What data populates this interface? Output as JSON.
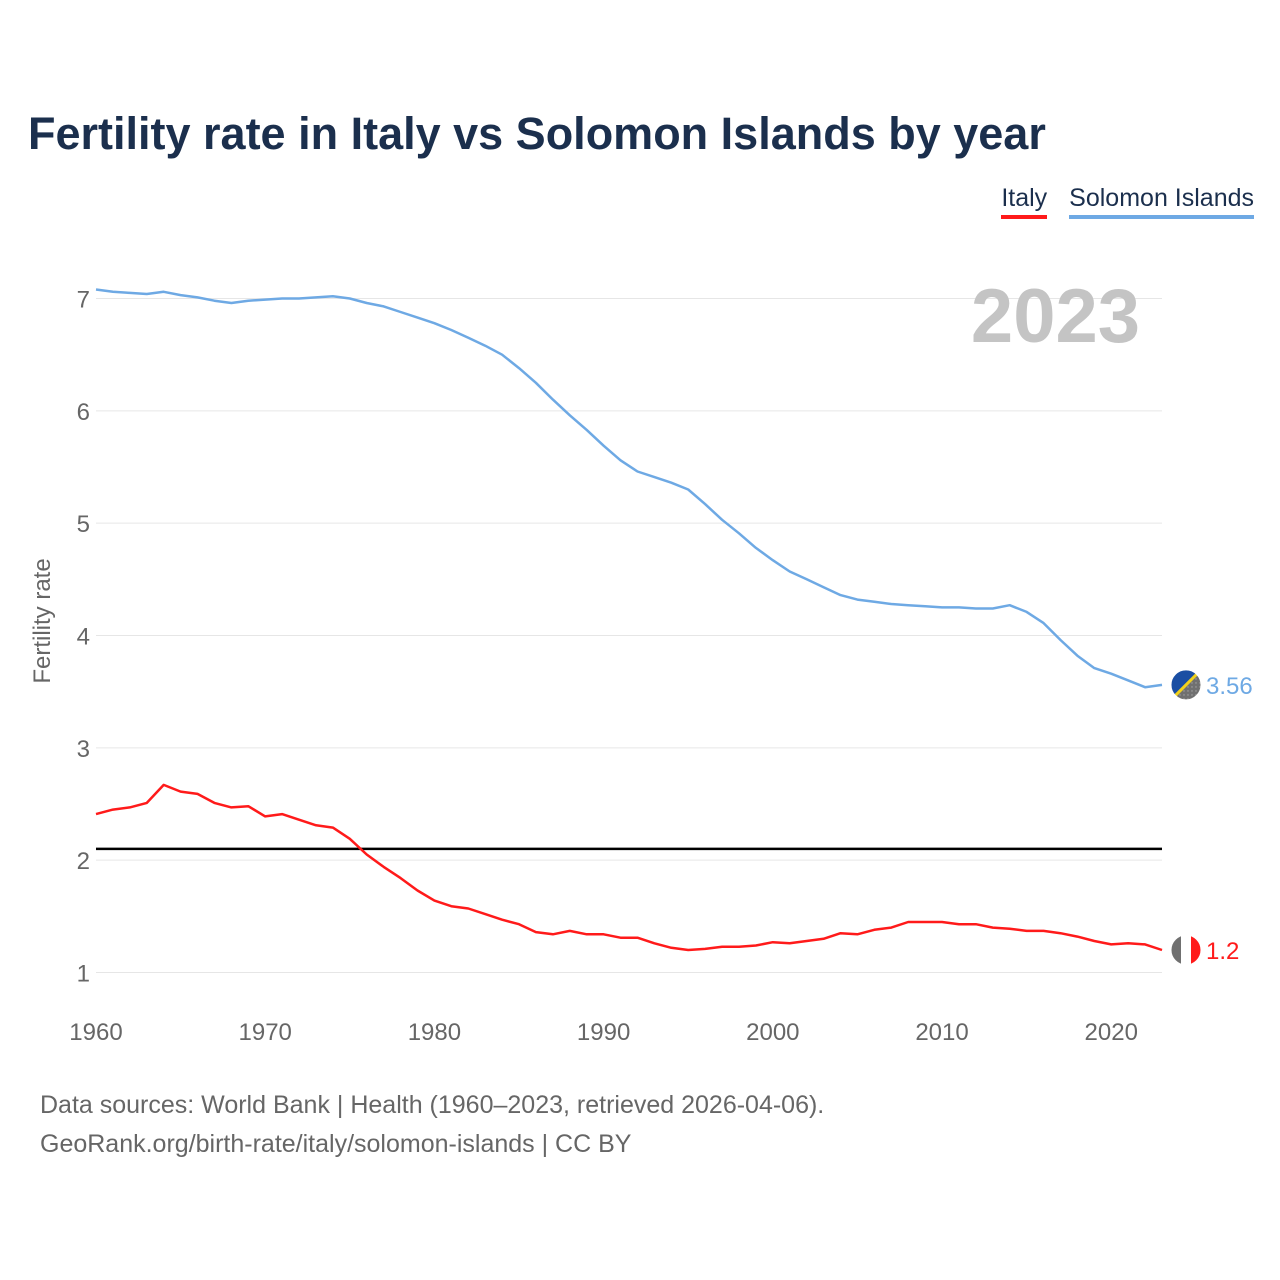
{
  "title": "Fertility rate in Italy vs Solomon Islands by year",
  "legend": [
    {
      "label": "Italy",
      "color": "#ff1a1a"
    },
    {
      "label": "Solomon Islands",
      "color": "#6ea9e4"
    }
  ],
  "year_label": "2023",
  "footer": {
    "sources": "Data sources: World Bank | Health (1960–2023, retrieved 2026-04-06).",
    "link": "GeoRank.org/birth-rate/italy/solomon-islands | CC BY"
  },
  "chart_data": {
    "type": "line",
    "title": "Fertility rate in Italy vs Solomon Islands by year",
    "xlabel": "",
    "ylabel": "Fertility rate",
    "xlim": [
      1960,
      2023
    ],
    "ylim": [
      0.75,
      7.2
    ],
    "x_ticks": [
      1960,
      1970,
      1980,
      1990,
      2000,
      2010,
      2020
    ],
    "y_ticks": [
      1,
      2,
      3,
      4,
      5,
      6,
      7
    ],
    "grid": true,
    "reference_line": {
      "value": 2.1,
      "color": "#000000"
    },
    "x": [
      1960,
      1961,
      1962,
      1963,
      1964,
      1965,
      1966,
      1967,
      1968,
      1969,
      1970,
      1971,
      1972,
      1973,
      1974,
      1975,
      1976,
      1977,
      1978,
      1979,
      1980,
      1981,
      1982,
      1983,
      1984,
      1985,
      1986,
      1987,
      1988,
      1989,
      1990,
      1991,
      1992,
      1993,
      1994,
      1995,
      1996,
      1997,
      1998,
      1999,
      2000,
      2001,
      2002,
      2003,
      2004,
      2005,
      2006,
      2007,
      2008,
      2009,
      2010,
      2011,
      2012,
      2013,
      2014,
      2015,
      2016,
      2017,
      2018,
      2019,
      2020,
      2021,
      2022,
      2023
    ],
    "series": [
      {
        "name": "Italy",
        "color": "#ff1a1a",
        "end_label": "1.2",
        "values": [
          2.41,
          2.45,
          2.47,
          2.51,
          2.67,
          2.61,
          2.59,
          2.51,
          2.47,
          2.48,
          2.39,
          2.41,
          2.36,
          2.31,
          2.29,
          2.19,
          2.05,
          1.94,
          1.84,
          1.73,
          1.64,
          1.59,
          1.57,
          1.52,
          1.47,
          1.43,
          1.36,
          1.34,
          1.37,
          1.34,
          1.34,
          1.31,
          1.31,
          1.26,
          1.22,
          1.2,
          1.21,
          1.23,
          1.23,
          1.24,
          1.27,
          1.26,
          1.28,
          1.3,
          1.35,
          1.34,
          1.38,
          1.4,
          1.45,
          1.45,
          1.45,
          1.43,
          1.43,
          1.4,
          1.39,
          1.37,
          1.37,
          1.35,
          1.32,
          1.28,
          1.25,
          1.26,
          1.25,
          1.2
        ]
      },
      {
        "name": "Solomon Islands",
        "color": "#6ea9e4",
        "end_label": "3.56",
        "values": [
          7.08,
          7.06,
          7.05,
          7.04,
          7.06,
          7.03,
          7.01,
          6.98,
          6.96,
          6.98,
          6.99,
          7.0,
          7.0,
          7.01,
          7.02,
          7.0,
          6.96,
          6.93,
          6.88,
          6.83,
          6.78,
          6.72,
          6.65,
          6.58,
          6.5,
          6.38,
          6.25,
          6.1,
          5.96,
          5.83,
          5.69,
          5.56,
          5.46,
          5.41,
          5.36,
          5.3,
          5.17,
          5.03,
          4.91,
          4.78,
          4.67,
          4.57,
          4.5,
          4.43,
          4.36,
          4.32,
          4.3,
          4.28,
          4.27,
          4.26,
          4.25,
          4.25,
          4.24,
          4.24,
          4.27,
          4.21,
          4.11,
          3.96,
          3.82,
          3.71,
          3.66,
          3.6,
          3.54,
          3.56
        ]
      }
    ]
  }
}
